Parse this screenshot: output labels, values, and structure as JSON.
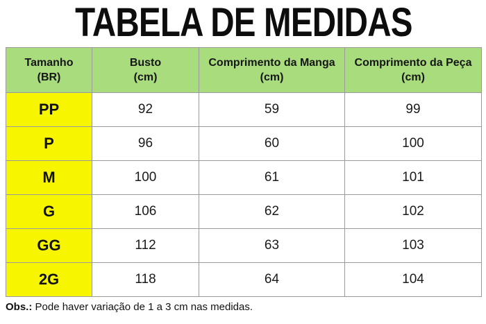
{
  "title": "TABELA DE MEDIDAS",
  "colors": {
    "header_bg": "#a8dc7c",
    "size_col_bg": "#f7f500",
    "border": "#9a9a9a"
  },
  "table": {
    "headers": [
      {
        "line1": "Tamanho",
        "line2": "(BR)"
      },
      {
        "line1": "Busto",
        "line2": "(cm)"
      },
      {
        "line1": "Comprimento da Manga",
        "line2": "(cm)"
      },
      {
        "line1": "Comprimento da Peça",
        "line2": "(cm)"
      }
    ],
    "rows": [
      {
        "size": "PP",
        "busto": "92",
        "manga": "59",
        "peca": "99"
      },
      {
        "size": "P",
        "busto": "96",
        "manga": "60",
        "peca": "100"
      },
      {
        "size": "M",
        "busto": "100",
        "manga": "61",
        "peca": "101"
      },
      {
        "size": "G",
        "busto": "106",
        "manga": "62",
        "peca": "102"
      },
      {
        "size": "GG",
        "busto": "112",
        "manga": "63",
        "peca": "103"
      },
      {
        "size": "2G",
        "busto": "118",
        "manga": "64",
        "peca": "104"
      }
    ]
  },
  "note": {
    "label": "Obs.:",
    "text": " Pode haver variação de 1 a 3 cm nas medidas."
  }
}
